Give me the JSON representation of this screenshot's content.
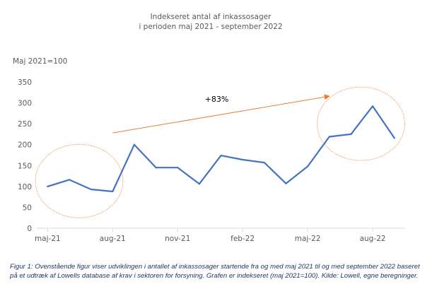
{
  "caption": "Figur 1: Ovenstående figur viser udviklingen i antallet af inkassosager startende fra og med maj 2021 til og med september 2022 baseret på et udtræk af Lowells database af krav i sektoren for forsyning. Grafen er indekseret (maj 2021=100). Kilde: Lowell, egne beregninger.",
  "chart_data": {
    "type": "line",
    "title": "Indekseret antal af inkassosager",
    "subtitle": "i perioden maj 2021 - september 2022",
    "ylabel": "Maj 2021=100",
    "xlabel": "",
    "ylim": [
      0,
      350
    ],
    "yticks": [
      0,
      50,
      100,
      150,
      200,
      250,
      300,
      350
    ],
    "grid": false,
    "x": [
      "maj-21",
      "jun-21",
      "jul-21",
      "aug-21",
      "sep-21",
      "okt-21",
      "nov-21",
      "dec-21",
      "jan-22",
      "feb-22",
      "mar-22",
      "apr-22",
      "maj-22",
      "jun-22",
      "jul-22",
      "aug-22",
      "sep-22"
    ],
    "xticklabels": [
      "maj-21",
      "aug-21",
      "nov-21",
      "feb-22",
      "maj-22",
      "aug-22"
    ],
    "series": [
      {
        "values": [
          100,
          116,
          93,
          88,
          200,
          145,
          145,
          106,
          174,
          164,
          157,
          107,
          148,
          219,
          225,
          292,
          216
        ]
      }
    ],
    "annotations": [
      {
        "text": "+83%",
        "type": "arrow",
        "from": {
          "x": "aug-21",
          "y": 228
        },
        "to": {
          "x": "jun-22",
          "y": 316
        }
      },
      {
        "type": "ellipse",
        "center": {
          "x": "jun-21",
          "y": 113
        }
      },
      {
        "type": "ellipse",
        "center": {
          "x": "jul-22",
          "y": 250
        }
      }
    ],
    "colors": {
      "line": "#4472c4",
      "annotation": "#ed7d31",
      "axis": "#d9d9d9",
      "text": "#595959"
    }
  }
}
